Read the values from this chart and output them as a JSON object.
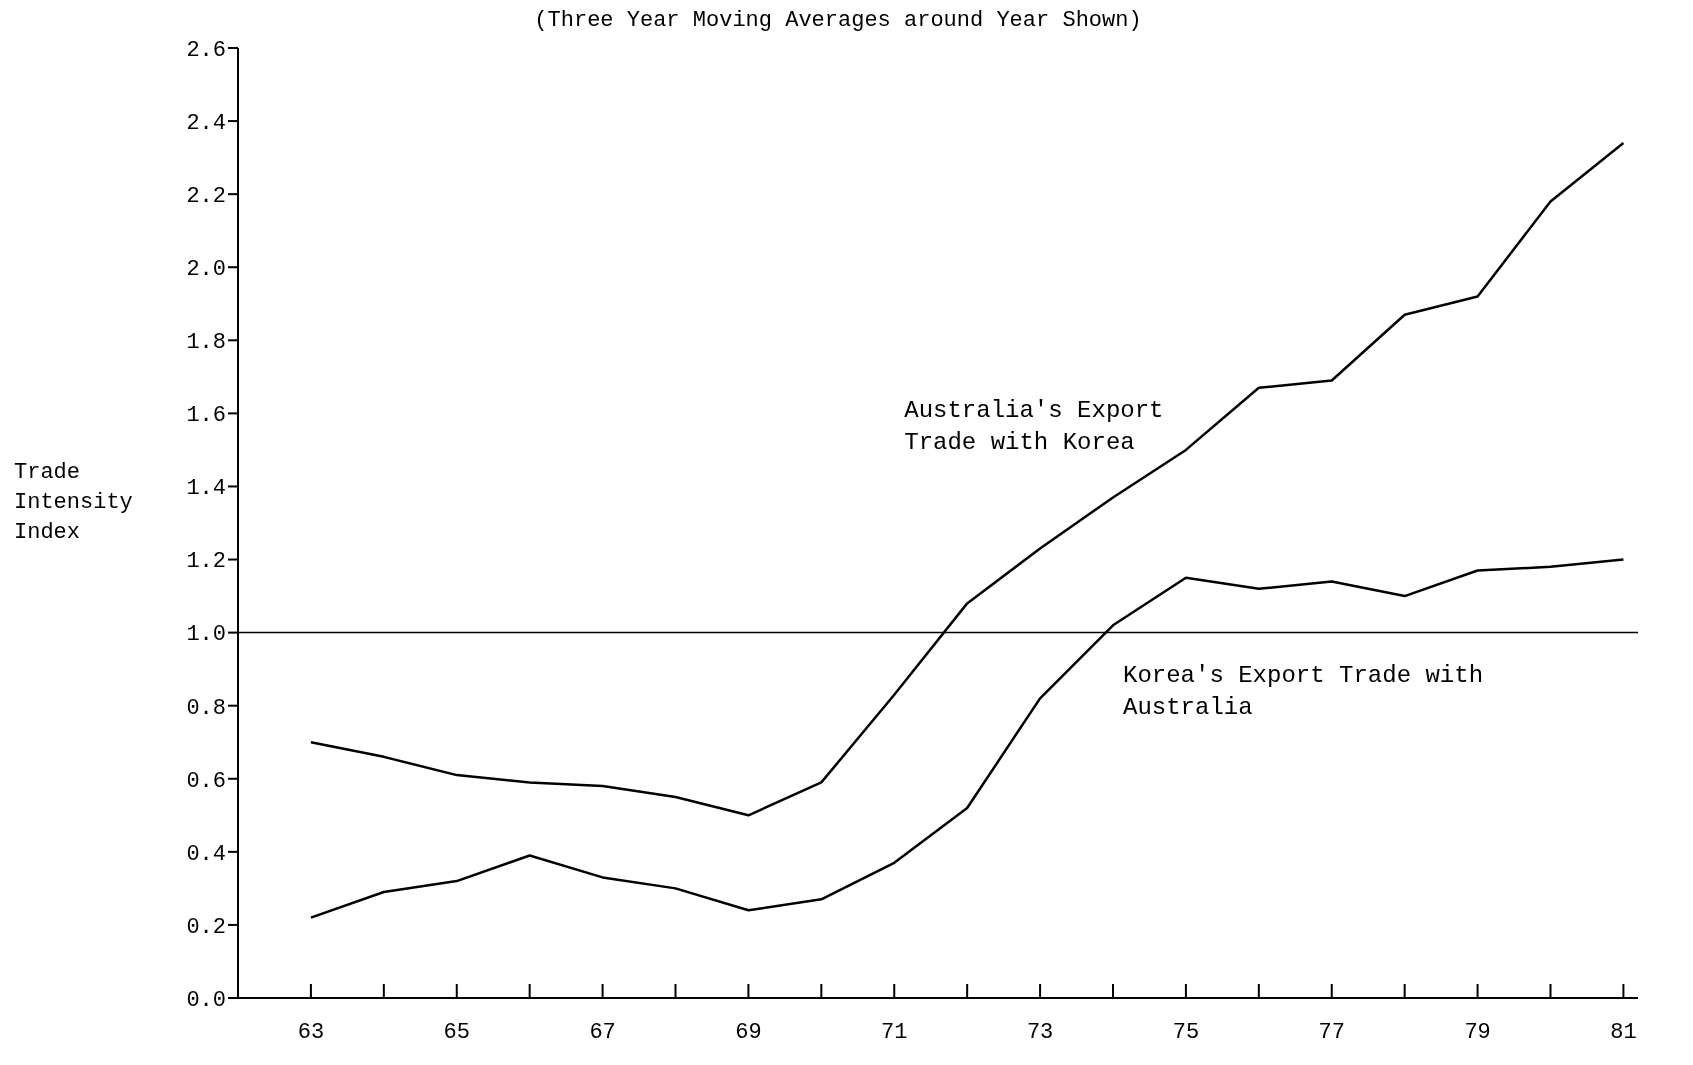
{
  "chart_data": {
    "type": "line",
    "subtitle": "(Three Year Moving Averages around Year Shown)",
    "ylabel": "Trade Intensity Index",
    "x": [
      63,
      64,
      65,
      66,
      67,
      68,
      69,
      70,
      71,
      72,
      73,
      74,
      75,
      76,
      77,
      78,
      79,
      80,
      81
    ],
    "series": [
      {
        "name": "Australia's Export Trade with Korea",
        "color": "#000000",
        "values": [
          0.7,
          0.66,
          0.61,
          0.59,
          0.58,
          0.55,
          0.5,
          0.59,
          0.83,
          1.08,
          1.23,
          1.37,
          1.5,
          1.67,
          1.69,
          1.87,
          1.92,
          2.18,
          2.34
        ]
      },
      {
        "name": "Korea's Export Trade with Australia",
        "color": "#000000",
        "values": [
          0.22,
          0.29,
          0.32,
          0.39,
          0.33,
          0.3,
          0.24,
          0.27,
          0.37,
          0.52,
          0.82,
          1.02,
          1.15,
          1.12,
          1.14,
          1.1,
          1.17,
          1.18,
          1.2
        ]
      }
    ],
    "xlim": [
      62,
      81.2
    ],
    "xticks": [
      63,
      {
        "value": 64,
        "label": null
      },
      65,
      {
        "value": 66,
        "label": null
      },
      67,
      {
        "value": 68,
        "label": null
      },
      69,
      {
        "value": 70,
        "label": null
      },
      71,
      {
        "value": 72,
        "label": null
      },
      73,
      {
        "value": 74,
        "label": null
      },
      75,
      {
        "value": 76,
        "label": null
      },
      77,
      {
        "value": 78,
        "label": null
      },
      79,
      {
        "value": 80,
        "label": null
      },
      81
    ],
    "ylim": [
      0,
      2.6
    ],
    "yticks": [
      {
        "value": 0,
        "label": "0.0"
      },
      0.2,
      0.4,
      0.6,
      0.8,
      {
        "value": 1,
        "label": "1.0"
      },
      1.2,
      1.4,
      1.6,
      1.8,
      {
        "value": 2,
        "label": "2.0"
      },
      2.2,
      2.4,
      2.6
    ],
    "ref_lines": [
      {
        "axis": "y",
        "value": 1,
        "color": "#000000"
      }
    ],
    "grid": false,
    "legend": false,
    "marker": "none",
    "line_style": "solid"
  }
}
